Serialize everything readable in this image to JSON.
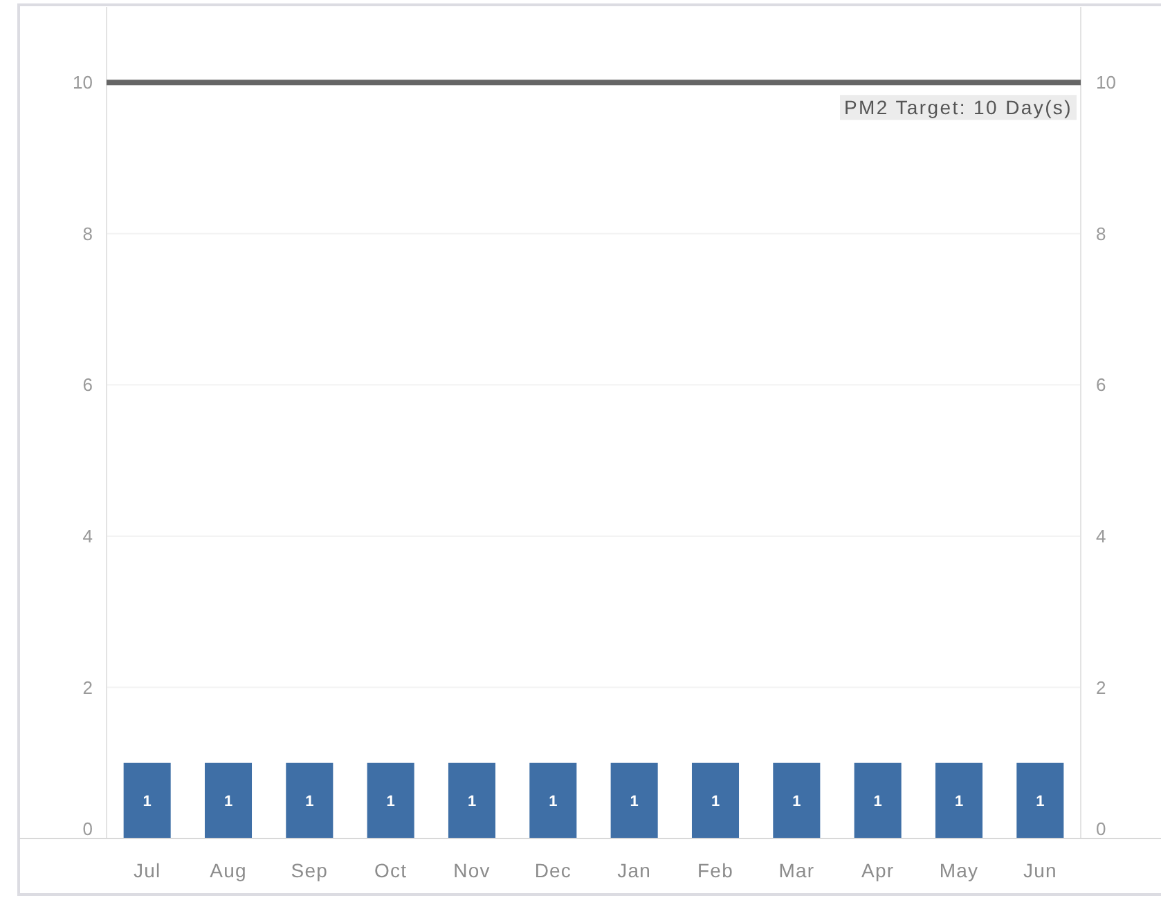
{
  "chart_data": {
    "type": "bar",
    "categories": [
      "Jul",
      "Aug",
      "Sep",
      "Oct",
      "Nov",
      "Dec",
      "Jan",
      "Feb",
      "Mar",
      "Apr",
      "May",
      "Jun"
    ],
    "values": [
      1,
      1,
      1,
      1,
      1,
      1,
      1,
      1,
      1,
      1,
      1,
      1
    ],
    "color": "#3f6fa6",
    "ylim": [
      0,
      11
    ],
    "yticks": [
      0,
      2,
      4,
      6,
      8,
      10
    ],
    "y2lim": [
      0,
      11
    ],
    "y2ticks": [
      0,
      2,
      4,
      6,
      8,
      10
    ],
    "grid": "y",
    "data_labels": true,
    "ref_lines": [
      {
        "axis": "y",
        "value": 10,
        "label": "PM2 Target: 10 Day(s)",
        "color": "#666666"
      }
    ]
  }
}
